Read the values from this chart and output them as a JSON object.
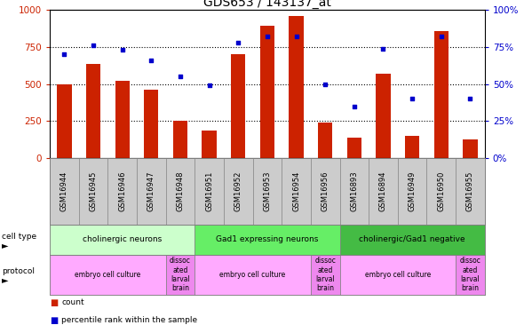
{
  "title": "GDS653 / 143137_at",
  "samples": [
    "GSM16944",
    "GSM16945",
    "GSM16946",
    "GSM16947",
    "GSM16948",
    "GSM16951",
    "GSM16952",
    "GSM16953",
    "GSM16954",
    "GSM16956",
    "GSM16893",
    "GSM16894",
    "GSM16949",
    "GSM16950",
    "GSM16955"
  ],
  "counts": [
    500,
    635,
    520,
    465,
    255,
    185,
    700,
    895,
    960,
    240,
    140,
    570,
    150,
    860,
    125
  ],
  "percentiles": [
    70,
    76,
    73,
    66,
    55,
    49,
    78,
    82,
    82,
    50,
    35,
    74,
    40,
    82,
    40
  ],
  "bar_color": "#cc2200",
  "dot_color": "#0000cc",
  "ylim_left": [
    0,
    1000
  ],
  "ylim_right": [
    0,
    100
  ],
  "yticks_left": [
    0,
    250,
    500,
    750,
    1000
  ],
  "yticks_right": [
    0,
    25,
    50,
    75,
    100
  ],
  "ytick_labels_left": [
    "0",
    "250",
    "500",
    "750",
    "1000"
  ],
  "ytick_labels_right": [
    "0%",
    "25%",
    "50%",
    "75%",
    "100%"
  ],
  "cell_type_groups": [
    {
      "label": "cholinergic neurons",
      "start": 0,
      "end": 5,
      "color": "#ccffcc"
    },
    {
      "label": "Gad1 expressing neurons",
      "start": 5,
      "end": 10,
      "color": "#66ee66"
    },
    {
      "label": "cholinergic/Gad1 negative",
      "start": 10,
      "end": 15,
      "color": "#44bb44"
    }
  ],
  "protocol_groups": [
    {
      "label": "embryo cell culture",
      "start": 0,
      "end": 4,
      "color": "#ffaaff"
    },
    {
      "label": "dissoc\nated\nlarval\nbrain",
      "start": 4,
      "end": 5,
      "color": "#ee88ee"
    },
    {
      "label": "embryo cell culture",
      "start": 5,
      "end": 9,
      "color": "#ffaaff"
    },
    {
      "label": "dissoc\nated\nlarval\nbrain",
      "start": 9,
      "end": 10,
      "color": "#ee88ee"
    },
    {
      "label": "embryo cell culture",
      "start": 10,
      "end": 14,
      "color": "#ffaaff"
    },
    {
      "label": "dissoc\nated\nlarval\nbrain",
      "start": 14,
      "end": 15,
      "color": "#ee88ee"
    }
  ],
  "background_color": "#ffffff",
  "title_fontsize": 10,
  "tick_fontsize": 7.5,
  "bar_width": 0.5
}
